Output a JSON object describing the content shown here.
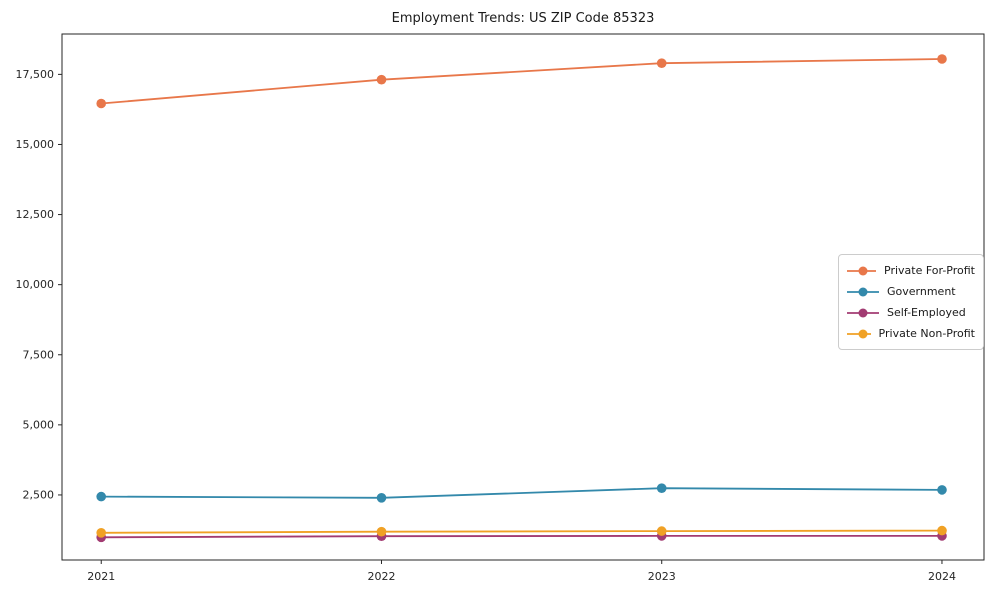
{
  "chart_data": {
    "type": "line",
    "title": "Employment Trends: US ZIP Code 85323",
    "x": [
      2021,
      2022,
      2023,
      2024
    ],
    "x_tick_labels": [
      "2021",
      "2022",
      "2023",
      "2024"
    ],
    "series": [
      {
        "name": "Private For-Profit",
        "color": "#E8774A",
        "values": [
          16460,
          17310,
          17900,
          18050
        ]
      },
      {
        "name": "Government",
        "color": "#3389AB",
        "values": [
          2440,
          2400,
          2740,
          2680
        ]
      },
      {
        "name": "Self-Employed",
        "color": "#A23B72",
        "values": [
          990,
          1030,
          1040,
          1040
        ]
      },
      {
        "name": "Private Non-Profit",
        "color": "#F0A125",
        "values": [
          1150,
          1190,
          1210,
          1230
        ]
      }
    ],
    "y_ticks": [
      2500,
      5000,
      7500,
      10000,
      12500,
      15000,
      17500
    ],
    "y_tick_labels": [
      "2,500",
      "5,000",
      "7,500",
      "10,000",
      "12,500",
      "15,000",
      "17,500"
    ],
    "xlim": [
      2020.86,
      2024.15
    ],
    "ylim": [
      180,
      18940
    ],
    "grid": false,
    "legend_position": "center-right",
    "axis_color": "#262626"
  }
}
